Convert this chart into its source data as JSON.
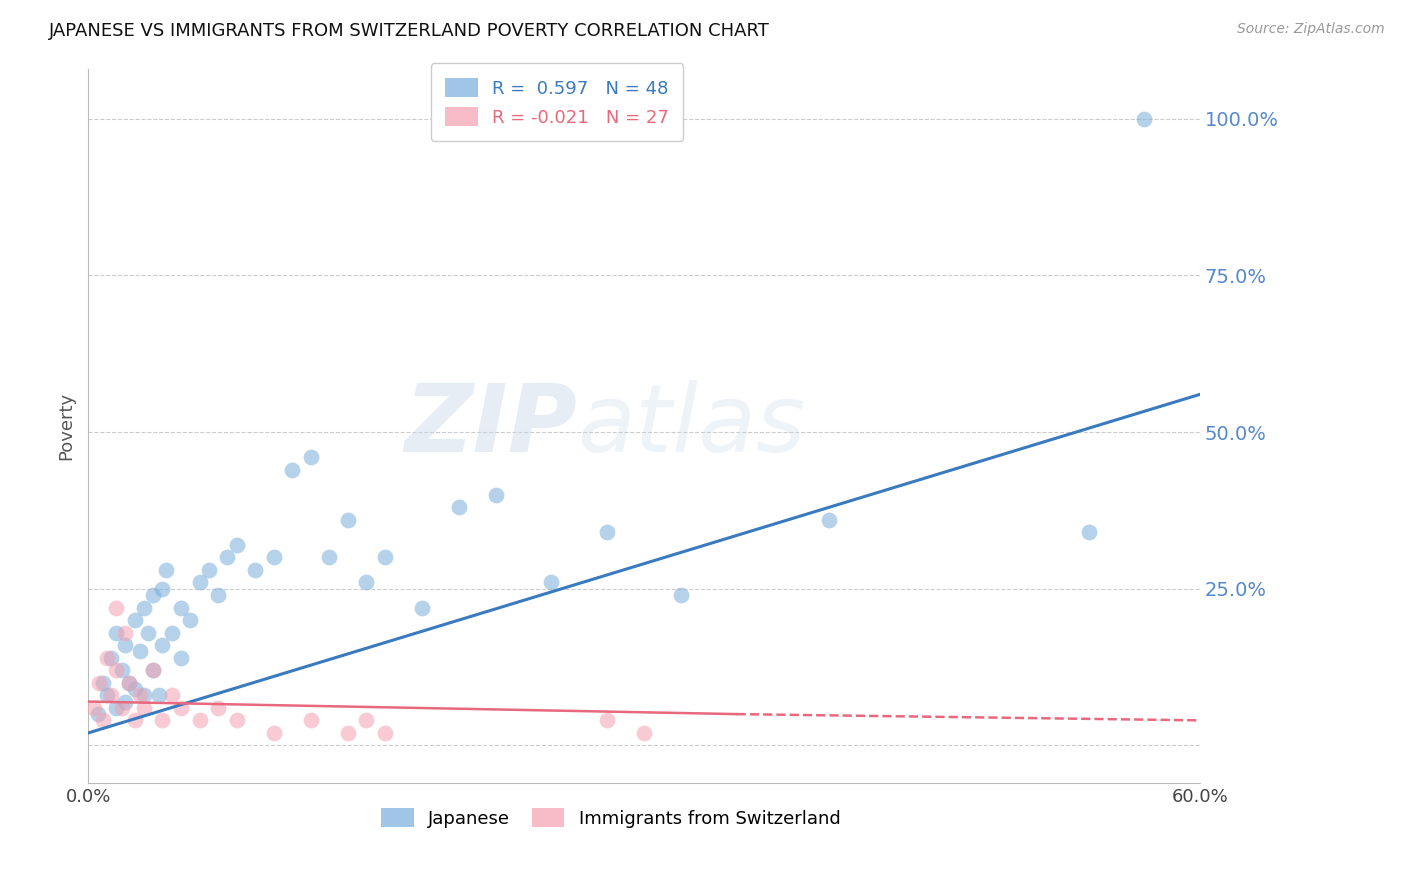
{
  "title": "JAPANESE VS IMMIGRANTS FROM SWITZERLAND POVERTY CORRELATION CHART",
  "source": "Source: ZipAtlas.com",
  "ylabel": "Poverty",
  "xmin": 0.0,
  "xmax": 0.6,
  "ymin": -0.06,
  "ymax": 1.08,
  "yticks": [
    0.0,
    0.25,
    0.5,
    0.75,
    1.0
  ],
  "ytick_labels": [
    "",
    "25.0%",
    "50.0%",
    "75.0%",
    "100.0%"
  ],
  "xticks": [
    0.0,
    0.1,
    0.2,
    0.3,
    0.4,
    0.5,
    0.6
  ],
  "xtick_labels": [
    "0.0%",
    "",
    "",
    "",
    "",
    "",
    "60.0%"
  ],
  "japanese_color": "#7aaddc",
  "swiss_color": "#f4a0b0",
  "japanese_line_color": "#3a7abf",
  "swiss_line_color": "#e8697d",
  "japanese_r": "0.597",
  "japanese_n": "48",
  "swiss_r": "-0.021",
  "swiss_n": "27",
  "watermark_zip": "ZIP",
  "watermark_atlas": "atlas",
  "japanese_x": [
    0.005,
    0.008,
    0.01,
    0.012,
    0.015,
    0.015,
    0.018,
    0.02,
    0.02,
    0.022,
    0.025,
    0.025,
    0.028,
    0.03,
    0.03,
    0.032,
    0.035,
    0.035,
    0.038,
    0.04,
    0.04,
    0.042,
    0.045,
    0.05,
    0.05,
    0.055,
    0.06,
    0.065,
    0.07,
    0.075,
    0.08,
    0.09,
    0.1,
    0.11,
    0.12,
    0.13,
    0.14,
    0.15,
    0.16,
    0.18,
    0.2,
    0.22,
    0.25,
    0.28,
    0.32,
    0.4,
    0.54,
    0.57
  ],
  "japanese_y": [
    0.05,
    0.1,
    0.08,
    0.14,
    0.06,
    0.18,
    0.12,
    0.07,
    0.16,
    0.1,
    0.2,
    0.09,
    0.15,
    0.22,
    0.08,
    0.18,
    0.12,
    0.24,
    0.08,
    0.25,
    0.16,
    0.28,
    0.18,
    0.22,
    0.14,
    0.2,
    0.26,
    0.28,
    0.24,
    0.3,
    0.32,
    0.28,
    0.3,
    0.44,
    0.46,
    0.3,
    0.36,
    0.26,
    0.3,
    0.22,
    0.38,
    0.4,
    0.26,
    0.34,
    0.24,
    0.36,
    0.34,
    1.0
  ],
  "swiss_x": [
    0.003,
    0.006,
    0.008,
    0.01,
    0.012,
    0.015,
    0.015,
    0.018,
    0.02,
    0.022,
    0.025,
    0.028,
    0.03,
    0.035,
    0.04,
    0.045,
    0.05,
    0.06,
    0.07,
    0.08,
    0.1,
    0.12,
    0.14,
    0.15,
    0.16,
    0.28,
    0.3
  ],
  "swiss_y": [
    0.06,
    0.1,
    0.04,
    0.14,
    0.08,
    0.22,
    0.12,
    0.06,
    0.18,
    0.1,
    0.04,
    0.08,
    0.06,
    0.12,
    0.04,
    0.08,
    0.06,
    0.04,
    0.06,
    0.04,
    0.02,
    0.04,
    0.02,
    0.04,
    0.02,
    0.04,
    0.02
  ],
  "swiss_line_xmax": 0.6,
  "blue_line_start_x": 0.0,
  "blue_line_end_x": 0.6,
  "blue_line_start_y": 0.02,
  "blue_line_end_y": 0.56,
  "pink_line_start_x": 0.0,
  "pink_line_end_x": 0.6,
  "pink_line_start_y": 0.07,
  "pink_line_end_y": 0.04
}
